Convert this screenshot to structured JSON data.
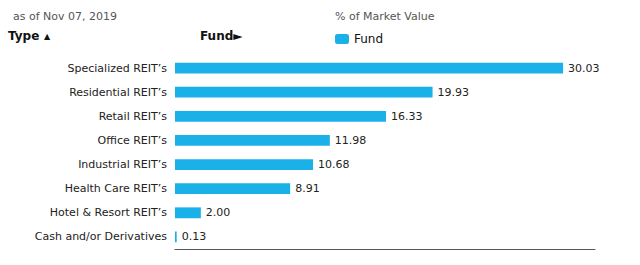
{
  "chart_data": {
    "type": "bar",
    "orientation": "horizontal",
    "title": "% of Market Value",
    "subtitle": "as of Nov 07, 2019",
    "ylabel": "Type",
    "annotations": [
      "▲",
      "Fund►"
    ],
    "categories": [
      "Specialized REIT’s",
      "Residential REIT’s",
      "Retail REIT’s",
      "Office REIT’s",
      "Industrial REIT’s",
      "Health Care REIT’s",
      "Hotel & Resort REIT’s",
      "Cash and/or Derivatives"
    ],
    "series": [
      {
        "name": "Fund",
        "color": "#1ab0e8",
        "values": [
          30.03,
          19.93,
          16.33,
          11.98,
          10.68,
          8.91,
          2.0,
          0.13
        ],
        "value_labels": [
          "30.03",
          "19.93",
          "16.33",
          "11.98",
          "10.68",
          "8.91",
          "2.00",
          "0.13"
        ]
      }
    ],
    "xlim": [
      0,
      32.5
    ],
    "xticks": [],
    "tick_labels": "y",
    "grid": false,
    "legend": "top",
    "data_labels": true
  }
}
